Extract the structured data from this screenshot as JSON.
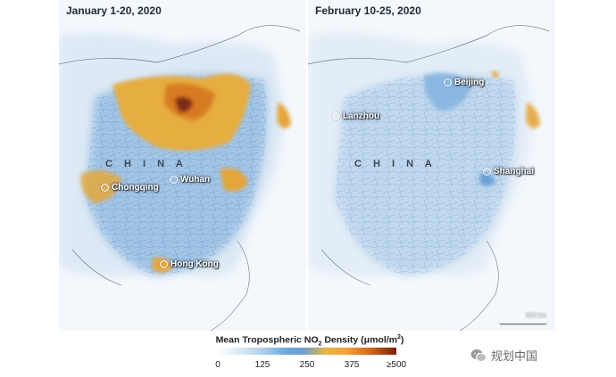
{
  "panels": [
    {
      "title": "January 1-20, 2020",
      "country": "C H I N A",
      "cities": [
        "Chongqing",
        "Wuhan",
        "Hong Kong"
      ]
    },
    {
      "title": "February 10-25, 2020",
      "country": "C H I N A",
      "cities": [
        "Lanzhou",
        "Beijing",
        "Shanghai"
      ],
      "scale": "500 km"
    }
  ],
  "legend": {
    "title_prefix": "Mean Tropospheric NO",
    "title_sub": "2",
    "title_mid": " Density (μmol/m",
    "title_sup": "2",
    "title_end": ")",
    "ticks": [
      "0",
      "125",
      "250",
      "375",
      "≥500"
    ],
    "colors": [
      "#ffffff",
      "#6fa8d9",
      "#e3b64a",
      "#d2691e",
      "#7a2010"
    ]
  },
  "watermark": {
    "text": "规划中国",
    "icon": "wechat-icon"
  }
}
